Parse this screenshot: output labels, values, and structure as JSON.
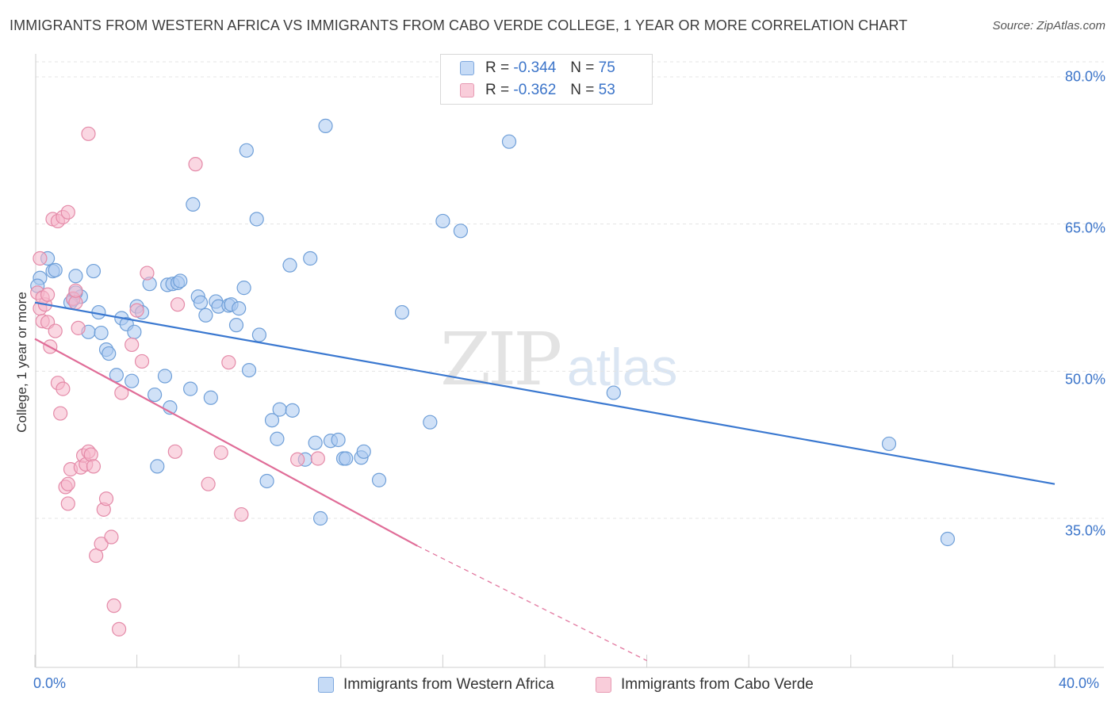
{
  "title": "IMMIGRANTS FROM WESTERN AFRICA VS IMMIGRANTS FROM CABO VERDE COLLEGE, 1 YEAR OR MORE CORRELATION CHART",
  "source": "Source: ZipAtlas.com",
  "watermark": {
    "zip": "ZIP",
    "atlas": "atlas"
  },
  "legend": {
    "blue": {
      "r_label": "R =",
      "r_value": "-0.344",
      "n_label": "N =",
      "n_value": "75"
    },
    "pink": {
      "r_label": "R =",
      "r_value": "-0.362",
      "n_label": "N =",
      "n_value": "53"
    }
  },
  "colors": {
    "blue_fill": "#aac8f0",
    "blue_stroke": "#6f9fd8",
    "blue_line": "#3a78d0",
    "pink_fill": "#f5b6cb",
    "pink_stroke": "#e48aa8",
    "pink_line": "#e06d98",
    "tick": "#3b74c9",
    "grid": "#e4e4e4"
  },
  "chart_data": {
    "type": "scatter",
    "xlabel": "",
    "ylabel": "College, 1 year or more",
    "xlim": [
      0,
      40
    ],
    "ylim": [
      20.5,
      84
    ],
    "x_tick_labels": [
      {
        "value": 0,
        "label": "0.0%"
      },
      {
        "value": 40,
        "label": "40.0%"
      }
    ],
    "y_tick_labels": [
      {
        "value": 80,
        "label": "80.0%"
      },
      {
        "value": 65,
        "label": "65.0%"
      },
      {
        "value": 50,
        "label": "50.0%"
      },
      {
        "value": 35,
        "label": "35.0%"
      }
    ],
    "x_minor_ticks": [
      0,
      4,
      8,
      12,
      16,
      20,
      24,
      28,
      32,
      36,
      40
    ],
    "grid": true,
    "legend_position": "top-center",
    "series": [
      {
        "name": "Immigrants from Western Africa",
        "color": "#aac8f0",
        "points": [
          [
            0.2,
            59.5
          ],
          [
            0.5,
            61.5
          ],
          [
            0.7,
            60.2
          ],
          [
            0.8,
            60.3
          ],
          [
            1.5,
            57.3
          ],
          [
            1.8,
            57.6
          ],
          [
            1.6,
            58.0
          ],
          [
            1.4,
            57.0
          ],
          [
            1.6,
            59.7
          ],
          [
            2.3,
            60.2
          ],
          [
            2.5,
            56.0
          ],
          [
            2.1,
            54.0
          ],
          [
            2.6,
            53.9
          ],
          [
            2.8,
            52.2
          ],
          [
            2.9,
            51.8
          ],
          [
            3.2,
            49.6
          ],
          [
            3.4,
            55.4
          ],
          [
            3.6,
            54.8
          ],
          [
            3.8,
            49.0
          ],
          [
            3.9,
            54.0
          ],
          [
            4.0,
            56.6
          ],
          [
            4.2,
            56.0
          ],
          [
            4.5,
            58.9
          ],
          [
            4.7,
            47.6
          ],
          [
            4.8,
            40.3
          ],
          [
            5.1,
            49.5
          ],
          [
            5.3,
            46.3
          ],
          [
            5.2,
            58.8
          ],
          [
            5.4,
            58.9
          ],
          [
            5.6,
            59.0
          ],
          [
            5.7,
            59.2
          ],
          [
            6.1,
            48.2
          ],
          [
            6.2,
            67.0
          ],
          [
            6.4,
            57.6
          ],
          [
            6.5,
            57.0
          ],
          [
            6.7,
            55.7
          ],
          [
            6.9,
            47.3
          ],
          [
            7.1,
            57.1
          ],
          [
            7.2,
            56.6
          ],
          [
            7.6,
            56.7
          ],
          [
            7.7,
            56.8
          ],
          [
            8.0,
            56.4
          ],
          [
            7.9,
            54.7
          ],
          [
            8.2,
            58.5
          ],
          [
            8.3,
            72.5
          ],
          [
            8.4,
            50.1
          ],
          [
            8.7,
            65.5
          ],
          [
            8.8,
            53.7
          ],
          [
            9.1,
            38.8
          ],
          [
            9.3,
            45.0
          ],
          [
            9.5,
            43.1
          ],
          [
            9.6,
            46.1
          ],
          [
            10.1,
            46.0
          ],
          [
            10.0,
            60.8
          ],
          [
            10.6,
            41.0
          ],
          [
            10.8,
            61.5
          ],
          [
            11.0,
            42.7
          ],
          [
            11.2,
            35.0
          ],
          [
            11.4,
            75.0
          ],
          [
            11.6,
            42.9
          ],
          [
            11.9,
            43.0
          ],
          [
            12.1,
            41.1
          ],
          [
            12.2,
            41.1
          ],
          [
            12.8,
            41.2
          ],
          [
            12.9,
            41.8
          ],
          [
            13.5,
            38.9
          ],
          [
            14.4,
            56.0
          ],
          [
            15.5,
            44.8
          ],
          [
            16.0,
            65.3
          ],
          [
            16.7,
            64.3
          ],
          [
            18.6,
            73.4
          ],
          [
            22.7,
            47.8
          ],
          [
            33.5,
            42.6
          ],
          [
            35.8,
            32.9
          ],
          [
            0.1,
            58.7
          ]
        ]
      },
      {
        "name": "Immigrants from Cabo Verde",
        "color": "#f5b6cb",
        "points": [
          [
            0.1,
            58.0
          ],
          [
            0.2,
            56.4
          ],
          [
            0.3,
            55.1
          ],
          [
            0.5,
            55.0
          ],
          [
            0.6,
            52.5
          ],
          [
            0.8,
            54.1
          ],
          [
            0.9,
            48.8
          ],
          [
            1.0,
            45.7
          ],
          [
            1.1,
            48.2
          ],
          [
            1.2,
            38.2
          ],
          [
            1.3,
            36.5
          ],
          [
            1.3,
            38.5
          ],
          [
            1.4,
            40.0
          ],
          [
            1.5,
            57.4
          ],
          [
            1.6,
            57.0
          ],
          [
            1.7,
            54.4
          ],
          [
            1.8,
            40.2
          ],
          [
            1.9,
            41.4
          ],
          [
            2.0,
            40.5
          ],
          [
            2.1,
            41.8
          ],
          [
            2.2,
            41.5
          ],
          [
            2.3,
            40.3
          ],
          [
            2.4,
            31.2
          ],
          [
            2.6,
            32.4
          ],
          [
            2.7,
            35.9
          ],
          [
            2.8,
            37.0
          ],
          [
            3.0,
            33.1
          ],
          [
            3.1,
            26.1
          ],
          [
            3.3,
            23.7
          ],
          [
            3.4,
            47.8
          ],
          [
            3.8,
            52.7
          ],
          [
            4.0,
            56.2
          ],
          [
            4.2,
            51.0
          ],
          [
            4.4,
            60.0
          ],
          [
            0.2,
            61.5
          ],
          [
            0.4,
            56.8
          ],
          [
            0.7,
            65.5
          ],
          [
            0.9,
            65.3
          ],
          [
            1.1,
            65.7
          ],
          [
            1.3,
            66.2
          ],
          [
            2.1,
            74.2
          ],
          [
            5.5,
            41.8
          ],
          [
            5.6,
            56.8
          ],
          [
            6.3,
            71.1
          ],
          [
            6.8,
            38.5
          ],
          [
            7.3,
            41.7
          ],
          [
            7.6,
            50.9
          ],
          [
            8.1,
            35.4
          ],
          [
            10.3,
            41.0
          ],
          [
            11.1,
            41.1
          ],
          [
            0.3,
            57.5
          ],
          [
            0.5,
            57.8
          ],
          [
            1.6,
            58.2
          ]
        ]
      }
    ],
    "trend_lines": [
      {
        "series": "Immigrants from Western Africa",
        "from": [
          0,
          57.0
        ],
        "to": [
          40,
          38.5
        ]
      },
      {
        "series": "Immigrants from Cabo Verde",
        "from": [
          0,
          53.3
        ],
        "to": [
          15,
          32.2
        ],
        "dashed_to": [
          24,
          20.5
        ]
      }
    ]
  }
}
